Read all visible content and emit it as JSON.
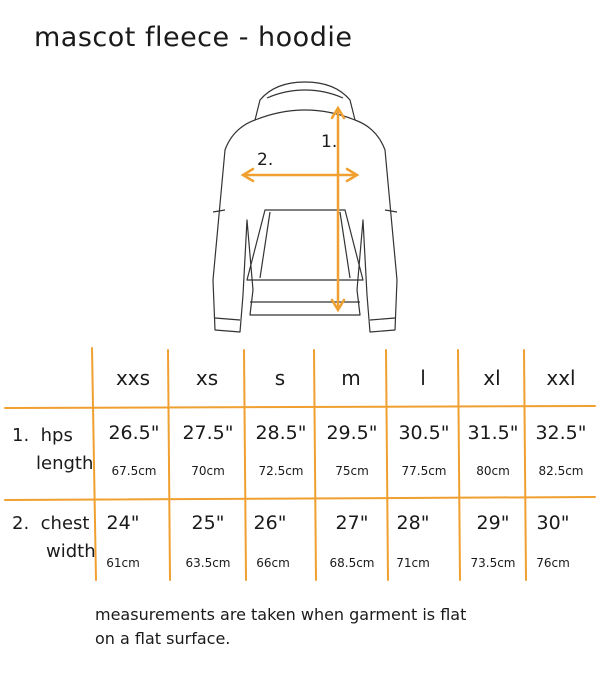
{
  "title": "mascot fleece - hoodie",
  "diagram": {
    "label_1": "1.",
    "label_2": "2.",
    "accent_color": "#f0a030"
  },
  "table": {
    "sizes": [
      "xxs",
      "xs",
      "s",
      "m",
      "l",
      "xl",
      "xxl"
    ],
    "rows": [
      {
        "label_num": "1.",
        "label_line1": "hps",
        "label_line2": "length",
        "inches": [
          "26.5\"",
          "27.5\"",
          "28.5\"",
          "29.5\"",
          "30.5\"",
          "31.5\"",
          "32.5\""
        ],
        "cm": [
          "67.5cm",
          "70cm",
          "72.5cm",
          "75cm",
          "77.5cm",
          "80cm",
          "82.5cm"
        ]
      },
      {
        "label_num": "2.",
        "label_line1": "chest",
        "label_line2": "width",
        "inches": [
          "24\"",
          "25\"",
          "26\"",
          "27\"",
          "28\"",
          "29\"",
          "30\""
        ],
        "cm": [
          "61cm",
          "63.5cm",
          "66cm",
          "68.5cm",
          "71cm",
          "73.5cm",
          "76cm"
        ]
      }
    ]
  },
  "note_line1": "measurements are taken when garment is flat",
  "note_line2": "on a flat surface."
}
